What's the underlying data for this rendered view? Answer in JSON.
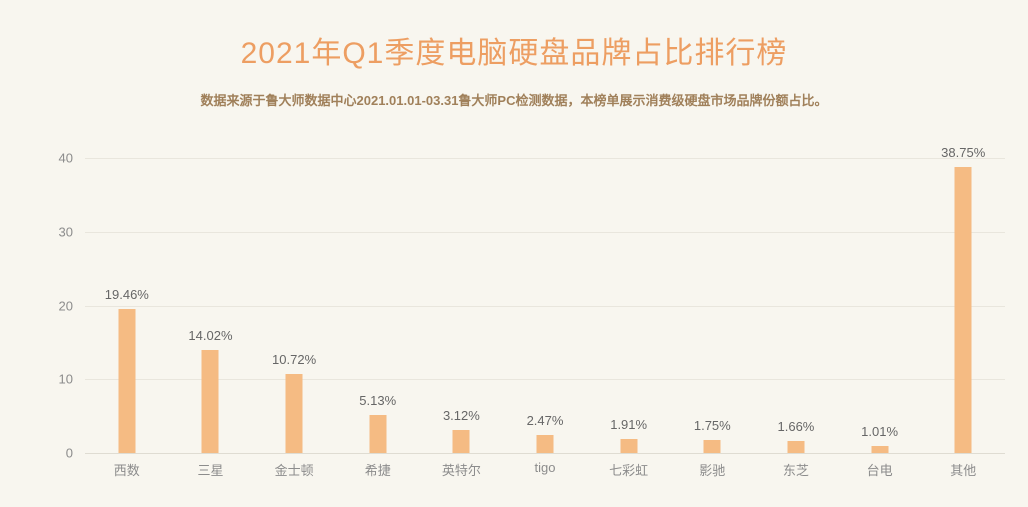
{
  "page": {
    "title": "2021年Q1季度电脑硬盘品牌占比排行榜",
    "subtitle": "数据来源于鲁大师数据中心2021.01.01-03.31鲁大师PC检测数据，本榜单展示消费级硬盘市场品牌份额占比。"
  },
  "colors": {
    "background": "#F8F6EF",
    "title": "#ED9E62",
    "subtitle": "#A0805A",
    "bar": "#F5BB83",
    "value_label": "#666666",
    "axis_label": "#8C8C8C",
    "gridline": "#E9E6DD"
  },
  "chart_data": {
    "type": "bar",
    "title": "2021年Q1季度电脑硬盘品牌占比排行榜",
    "subtitle": "数据来源于鲁大师数据中心2021.01.01-03.31鲁大师PC检测数据，本榜单展示消费级硬盘市场品牌份额占比。",
    "categories": [
      "西数",
      "三星",
      "金士顿",
      "希捷",
      "英特尔",
      "tigo",
      "七彩虹",
      "影驰",
      "东芝",
      "台电",
      "其他"
    ],
    "values": [
      19.46,
      14.02,
      10.72,
      5.13,
      3.12,
      2.47,
      1.91,
      1.75,
      1.66,
      1.01,
      38.75
    ],
    "value_labels": [
      "19.46%",
      "14.02%",
      "10.72%",
      "5.13%",
      "3.12%",
      "2.47%",
      "1.91%",
      "1.75%",
      "1.66%",
      "1.01%",
      "38.75%"
    ],
    "unit": "%",
    "xlabel": "",
    "ylabel": "",
    "ylim": [
      0,
      40
    ],
    "yticks": [
      0,
      10,
      20,
      30,
      40
    ],
    "grid": true,
    "legend_position": "none"
  }
}
